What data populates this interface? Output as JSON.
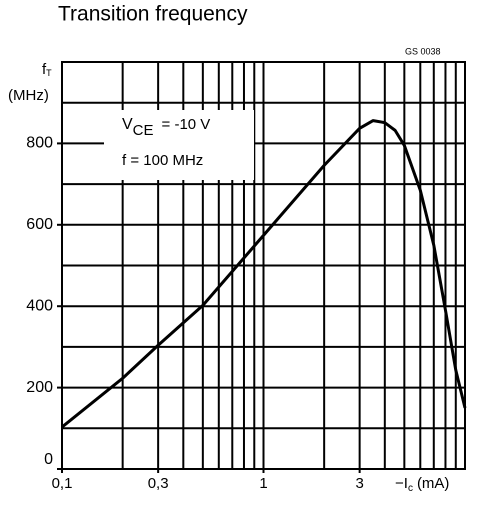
{
  "chart_data": {
    "type": "line",
    "title": "Transition frequency",
    "code": "GS 0038",
    "ylabel": {
      "symbol": "f",
      "sub": "T",
      "unit": "(MHz)"
    },
    "xlabel": {
      "prefix": "−I",
      "sub": "c",
      "unit": "(mA)"
    },
    "annotations": [
      {
        "symbol": "V",
        "sub": "CE",
        "rest": "= -10 V"
      },
      {
        "text": "f  =  100  MHz"
      }
    ],
    "log_x": true,
    "xlim": [
      0.1,
      10
    ],
    "ylim": [
      0,
      1000
    ],
    "xticks": [
      {
        "value": 0.1,
        "label": "0,1"
      },
      {
        "value": 0.3,
        "label": "0,3"
      },
      1,
      3
    ],
    "yticks": [
      0,
      200,
      400,
      600,
      800
    ],
    "xgrid": [
      0.2,
      0.3,
      0.4,
      0.5,
      0.6,
      0.7,
      0.8,
      0.9,
      1,
      2,
      3,
      4,
      5,
      6,
      7,
      8,
      9
    ],
    "ygrid": [
      100,
      200,
      300,
      400,
      500,
      600,
      700,
      800,
      900
    ],
    "x": [
      0.1,
      0.2,
      0.3,
      0.5,
      1,
      2,
      3,
      3.5,
      4,
      4.5,
      5,
      6,
      7,
      8,
      9,
      10
    ],
    "series": [
      {
        "color": "#000000",
        "values": [
          103,
          223,
          304,
          402,
          574,
          746,
          837,
          856,
          851,
          832,
          795,
          685,
          550,
          390,
          243,
          150
        ]
      }
    ]
  }
}
